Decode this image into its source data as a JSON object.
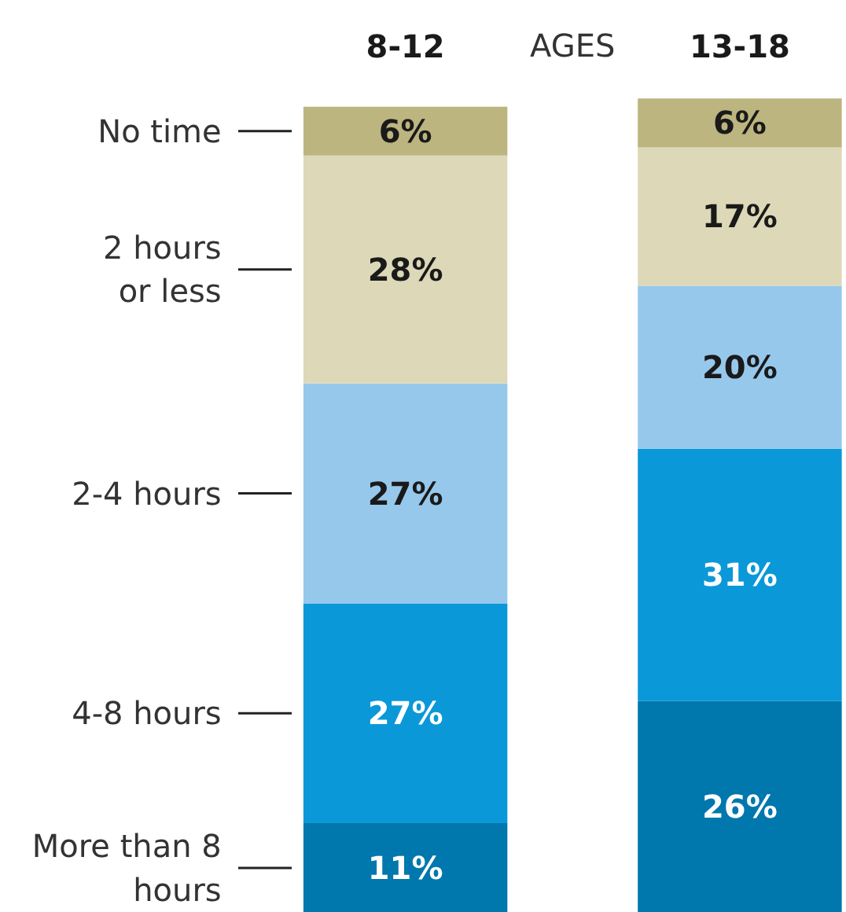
{
  "chart_data": {
    "type": "bar",
    "stacked": true,
    "xlabel": "AGES",
    "categories": [
      "8-12",
      "13-18"
    ],
    "series": [
      {
        "name": "More than 8\nhours",
        "color": "#0077ad",
        "values": [
          11,
          26
        ],
        "value_labels": [
          "11%",
          "26%"
        ]
      },
      {
        "name": "4-8 hours",
        "color": "#0a98d8",
        "values": [
          27,
          31
        ],
        "value_labels": [
          "27%",
          "31%"
        ]
      },
      {
        "name": "2-4 hours",
        "color": "#96c8ec",
        "values": [
          27,
          20
        ],
        "value_labels": [
          "27%",
          "20%"
        ]
      },
      {
        "name": "2 hours\nor less",
        "color": "#ddd8b8",
        "values": [
          28,
          17
        ],
        "value_labels": [
          "28%",
          "17%"
        ]
      },
      {
        "name": "No time",
        "color": "#bdb57f",
        "values": [
          6,
          6
        ],
        "value_labels": [
          "6%",
          "6%"
        ]
      }
    ]
  }
}
